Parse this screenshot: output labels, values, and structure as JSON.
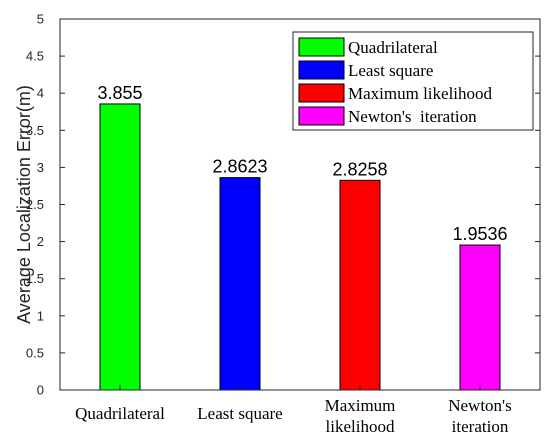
{
  "chart_data": {
    "type": "bar",
    "categories": [
      [
        "Quadrilateral"
      ],
      [
        "Least square"
      ],
      [
        "Maximum",
        "likelihood"
      ],
      [
        "Newton's",
        "iteration"
      ]
    ],
    "values": [
      3.855,
      2.8623,
      2.8258,
      1.9536
    ],
    "value_labels": [
      "3.855",
      "2.8623",
      "2.8258",
      "1.9536"
    ],
    "colors": [
      "#00ff00",
      "#0000ff",
      "#ff0000",
      "#ff00ff"
    ],
    "ylabel": "Average Localization Error(m)",
    "ylim": [
      0,
      5
    ],
    "yticks": [
      0,
      0.5,
      1,
      1.5,
      2,
      2.5,
      3,
      3.5,
      4,
      4.5,
      5
    ],
    "ytick_labels": [
      "0",
      "0.5",
      "1",
      "1.5",
      "2",
      "2.5",
      "3",
      "3.5",
      "4",
      "4.5",
      "5"
    ],
    "grid": false,
    "legend": {
      "position": "top-right",
      "entries": [
        {
          "label": "Quadrilateral",
          "color": "#00ff00"
        },
        {
          "label": "Least square",
          "color": "#0000ff"
        },
        {
          "label": "Maximum likelihood",
          "color": "#ff0000"
        },
        {
          "label": "Newton's  iteration",
          "color": "#ff00ff"
        }
      ]
    }
  }
}
